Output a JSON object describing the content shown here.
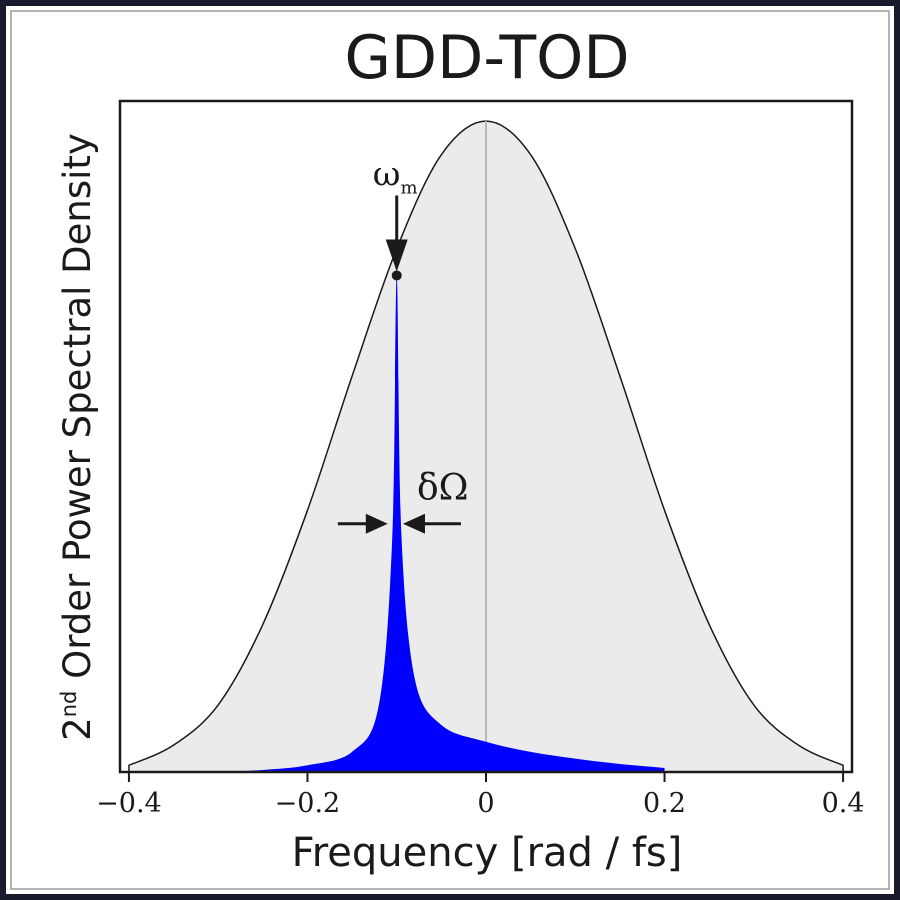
{
  "colors": {
    "background": "#ffffff",
    "frame_outer": "#1a1a2e",
    "frame_inner": "#9a9a9a",
    "envelope_fill": "#ebebeb",
    "envelope_stroke": "#1a1a1a",
    "peak_fill": "#0000ff",
    "zero_line": "#b8b8b8",
    "text": "#1a1a1a"
  },
  "chart_data": {
    "type": "area",
    "title": "GDD-TOD",
    "xlabel": "Frequency [rad / fs]",
    "ylabel_prefix": "2",
    "ylabel_sup": "nd",
    "ylabel_rest": " Order Power Spectral Density",
    "xlim": [
      -0.41,
      0.41
    ],
    "ylim": [
      0,
      1.0
    ],
    "x_ticks": [
      -0.4,
      -0.2,
      0,
      0.2,
      0.4
    ],
    "x_tick_labels": [
      "−0.4",
      "−0.2",
      "0",
      "0.2",
      "0.4"
    ],
    "y_ticks_shown": false,
    "grid": false,
    "series": [
      {
        "kind": "gaussian-envelope",
        "x": [
          -0.4,
          -0.35,
          -0.3,
          -0.25,
          -0.2,
          -0.15,
          -0.1,
          -0.05,
          0.0,
          0.05,
          0.1,
          0.15,
          0.2,
          0.25,
          0.3,
          0.35,
          0.4
        ],
        "y": [
          0.01,
          0.04,
          0.1,
          0.22,
          0.39,
          0.59,
          0.78,
          0.92,
          0.97,
          0.92,
          0.78,
          0.59,
          0.39,
          0.22,
          0.1,
          0.04,
          0.01
        ]
      },
      {
        "kind": "narrow-peak",
        "x": [
          -0.3,
          -0.25,
          -0.2,
          -0.15,
          -0.12,
          -0.105,
          -0.1,
          -0.095,
          -0.08,
          -0.05,
          0.0,
          0.05,
          0.1,
          0.15,
          0.2
        ],
        "y": [
          0.0,
          0.003,
          0.01,
          0.03,
          0.1,
          0.35,
          0.74,
          0.36,
          0.14,
          0.07,
          0.045,
          0.03,
          0.02,
          0.012,
          0.006
        ]
      }
    ],
    "zero_line_x": 0,
    "annotations": {
      "omega_m": {
        "symbol": "ω",
        "subscript": "m",
        "x": -0.1,
        "y": 0.74
      },
      "delta_omega": {
        "symbol": "δΩ",
        "x_left": -0.11,
        "x_right": -0.093,
        "y": 0.37
      }
    }
  }
}
